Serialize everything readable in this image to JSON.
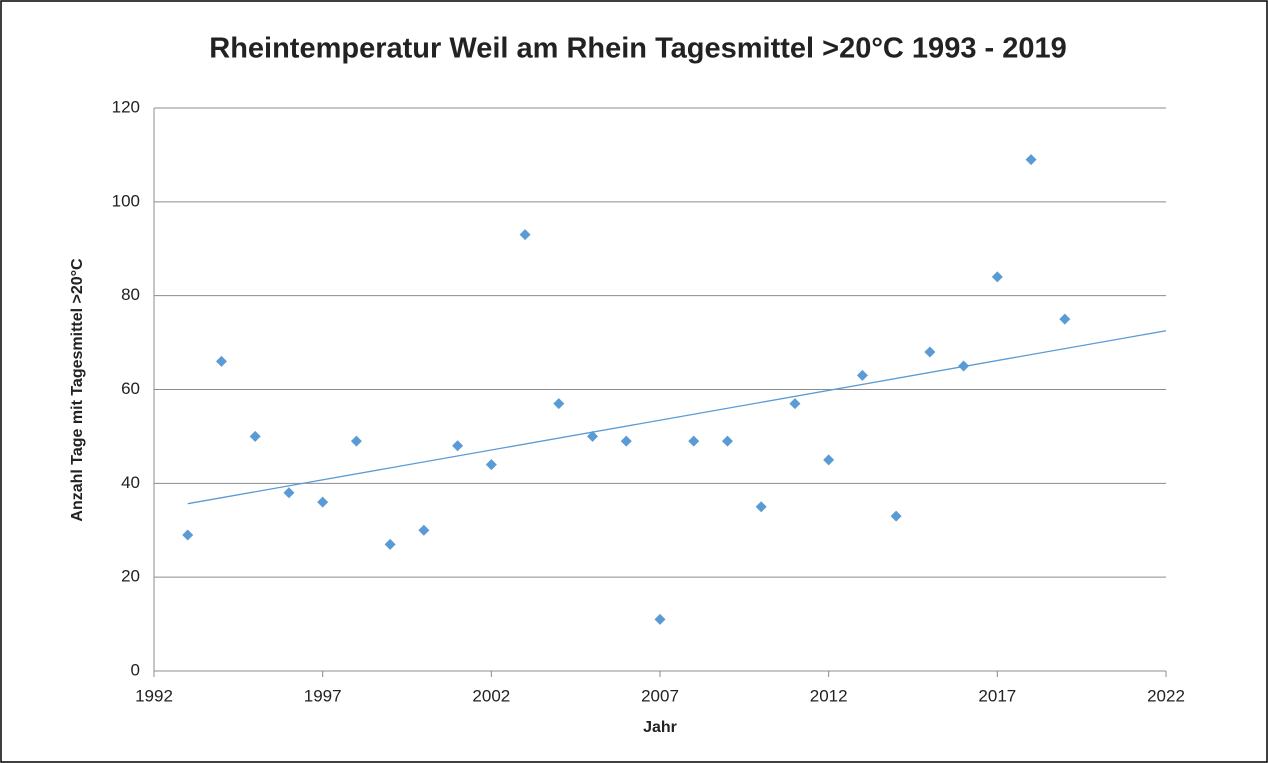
{
  "chart_data": {
    "type": "scatter",
    "title": "Rheintemperatur  Weil am Rhein Tagesmittel >20°C 1993 - 2019",
    "x_label": "Jahr",
    "y_label": "Anzahl Tage mit Tagesmittel >20°C",
    "x": [
      1993,
      1994,
      1995,
      1996,
      1997,
      1998,
      1999,
      2000,
      2001,
      2002,
      2003,
      2004,
      2005,
      2006,
      2007,
      2008,
      2009,
      2010,
      2011,
      2012,
      2013,
      2014,
      2015,
      2016,
      2017,
      2018,
      2019
    ],
    "values": [
      29,
      66,
      50,
      38,
      36,
      49,
      27,
      30,
      48,
      44,
      93,
      57,
      50,
      49,
      11,
      49,
      49,
      35,
      57,
      45,
      63,
      33,
      68,
      65,
      84,
      109,
      75
    ],
    "color": "#5b9bd5",
    "trendline": true,
    "xlim": [
      1992,
      2022
    ],
    "xticks": [
      1992,
      1997,
      2002,
      2007,
      2012,
      2017,
      2022
    ],
    "ylim": [
      0,
      120
    ],
    "yticks": [
      0,
      20,
      40,
      60,
      80,
      100,
      120
    ],
    "grid": true
  }
}
